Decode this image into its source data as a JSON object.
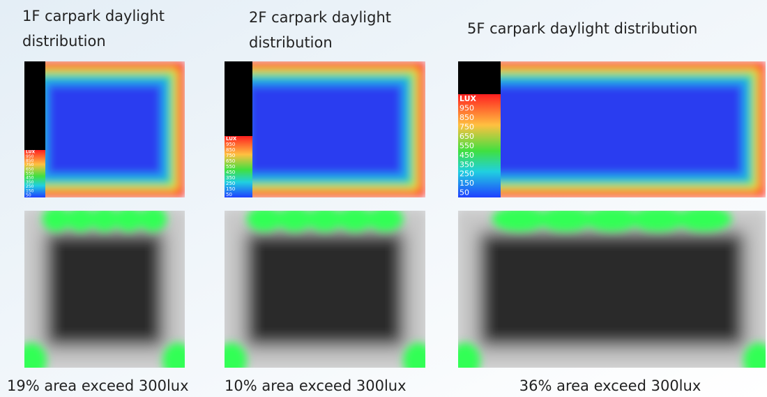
{
  "panels": [
    {
      "title": [
        "1F carpark daylight",
        "distribution"
      ],
      "legend": {
        "title": "LUX",
        "labels": [
          "950",
          "850",
          "750",
          "650",
          "550",
          "450",
          "350",
          "250",
          "150",
          "50"
        ]
      },
      "caption": "19% area exceed 300lux"
    },
    {
      "title": [
        "2F carpark daylight",
        "distribution"
      ],
      "legend": {
        "title": "LUX",
        "labels": [
          "950",
          "850",
          "750",
          "650",
          "550",
          "450",
          "350",
          "250",
          "150",
          "50"
        ]
      },
      "caption": "10% area exceed 300lux"
    },
    {
      "title": [
        "5F carpark daylight distribution"
      ],
      "legend": {
        "title": "LUX",
        "labels": [
          "950",
          "850",
          "750",
          "650",
          "550",
          "450",
          "350",
          "250",
          "150",
          "50"
        ]
      },
      "caption": "36% area exceed 300lux"
    }
  ]
}
